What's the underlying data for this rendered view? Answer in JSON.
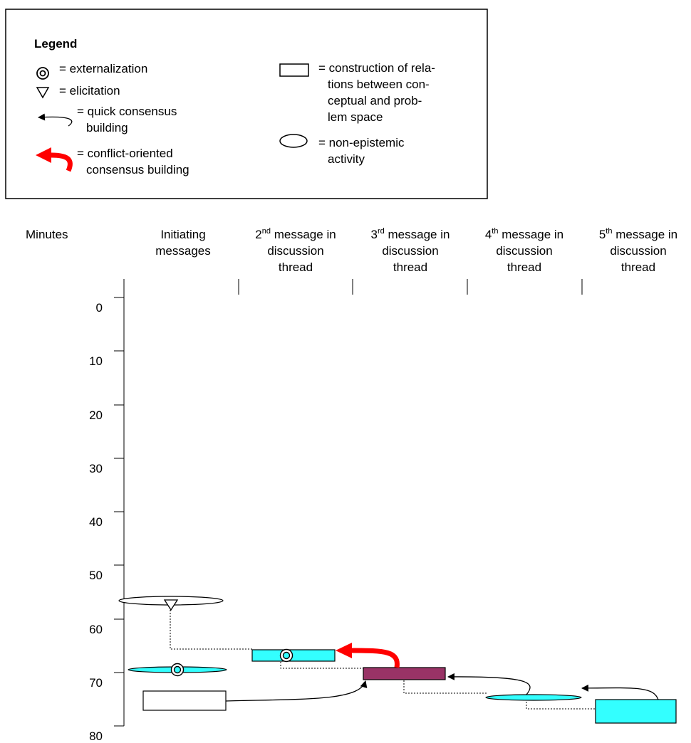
{
  "legend": {
    "title": "Legend",
    "items": {
      "externalization": "= externalization",
      "elicitation": "= elicitation",
      "quick_1": "= quick consensus",
      "quick_2": "building",
      "conflict_1": "= conflict-oriented",
      "conflict_2": "consensus building",
      "construction_1": "= construction of rela-",
      "construction_2": "tions between con-",
      "construction_3": "ceptual and prob-",
      "construction_4": "lem space",
      "nonepi_1": "= non-epistemic",
      "nonepi_2": "activity"
    }
  },
  "axis": {
    "title": "Minutes",
    "ticks": [
      "0",
      "10",
      "20",
      "30",
      "40",
      "50",
      "60",
      "70",
      "80"
    ]
  },
  "columns": {
    "c1": {
      "line1": "Initiating",
      "line2": "messages"
    },
    "c2": {
      "num": "2",
      "sup": "nd",
      "rest": " message in",
      "line2": "discussion",
      "line3": "thread"
    },
    "c3": {
      "num": "3",
      "sup": "rd",
      "rest": " message in",
      "line2": "discussion",
      "line3": "thread"
    },
    "c4": {
      "num": "4",
      "sup": "th",
      "rest": " message in",
      "line2": "discussion",
      "line3": "thread"
    },
    "c5": {
      "num": "5",
      "sup": "th",
      "rest": " message in",
      "line2": "discussion",
      "line3": "thread"
    }
  },
  "colors": {
    "cyan": "#33ffff",
    "maroon": "#993366",
    "red": "#ff0000",
    "white": "#ffffff",
    "black": "#000000"
  }
}
